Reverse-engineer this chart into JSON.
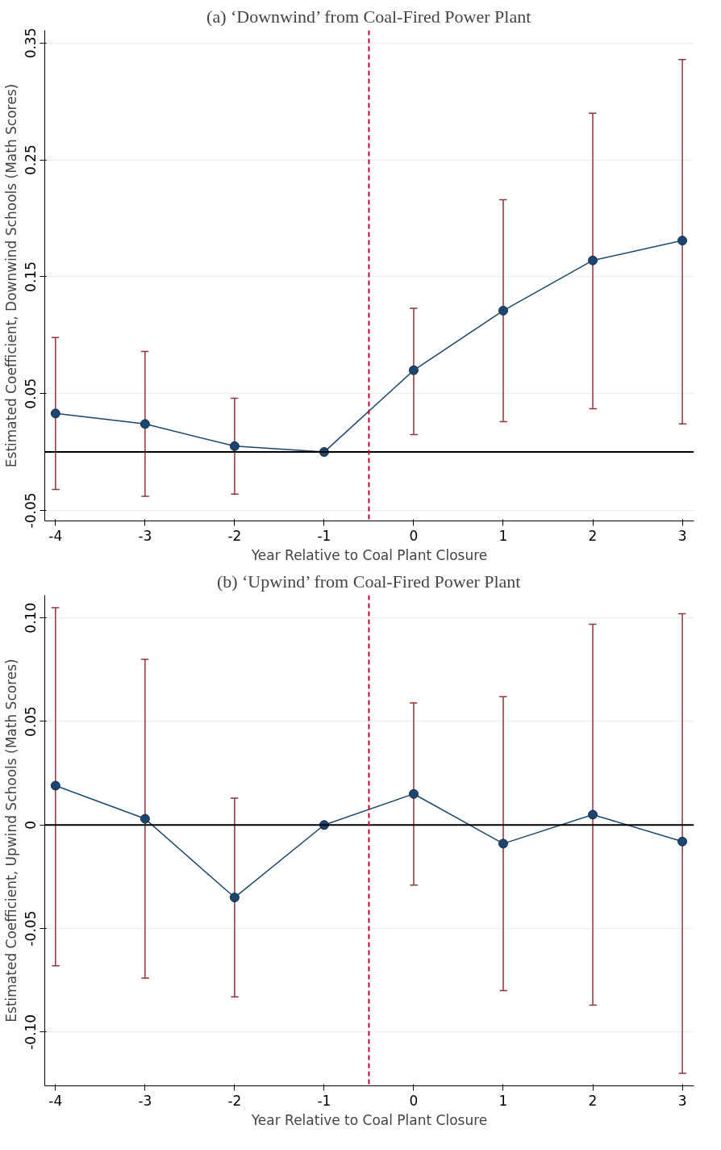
{
  "chart_data": [
    {
      "type": "line",
      "title": "(a) ‘Downwind’ from Coal-Fired Power Plant",
      "xlabel": "Year Relative to Coal Plant Closure",
      "ylabel": "Estimated Coefficient, Downwind Schools (Math Scores)",
      "x": [
        -4,
        -3,
        -2,
        -1,
        0,
        1,
        2,
        3
      ],
      "series": [
        {
          "color": "#1a476f",
          "values": [
            0.033,
            0.024,
            0.005,
            0.0,
            0.07,
            0.121,
            0.164,
            0.181
          ],
          "errors": [
            [
              -0.032,
              0.098
            ],
            [
              -0.038,
              0.086
            ],
            [
              -0.036,
              0.046
            ],
            null,
            [
              0.015,
              0.123
            ],
            [
              0.026,
              0.216
            ],
            [
              0.037,
              0.29
            ],
            [
              0.024,
              0.336
            ]
          ]
        }
      ],
      "xlim": [
        -4.12,
        3.13
      ],
      "xticks": [
        -4,
        -3,
        -2,
        -1,
        0,
        1,
        2,
        3
      ],
      "ylim": [
        -0.059,
        0.361
      ],
      "yticks": [
        -0.05,
        0.05,
        0.15,
        0.25,
        0.35
      ],
      "ref_lines": [
        {
          "axis": "y",
          "value": 0,
          "color": "#000000",
          "line_style": "solid"
        },
        {
          "axis": "x",
          "value": -0.5,
          "color": "#c10534",
          "line_style": "dashed"
        }
      ],
      "grid": "y",
      "marker": "circle",
      "line_style": "solid"
    },
    {
      "type": "line",
      "title": "(b) ‘Upwind’ from Coal-Fired Power Plant",
      "xlabel": "Year Relative to Coal Plant Closure",
      "ylabel": "Estimated Coefficient, Upwind Schools (Math Scores)",
      "x": [
        -4,
        -3,
        -2,
        -1,
        0,
        1,
        2,
        3
      ],
      "series": [
        {
          "color": "#1a476f",
          "values": [
            0.019,
            0.003,
            -0.035,
            0.0,
            0.015,
            -0.009,
            0.005,
            -0.008
          ],
          "errors": [
            [
              -0.068,
              0.105
            ],
            [
              -0.074,
              0.08
            ],
            [
              -0.083,
              0.013
            ],
            null,
            [
              -0.029,
              0.059
            ],
            [
              -0.08,
              0.062
            ],
            [
              -0.087,
              0.097
            ],
            [
              -0.12,
              0.102
            ]
          ]
        }
      ],
      "xlim": [
        -4.12,
        3.13
      ],
      "xticks": [
        -4,
        -3,
        -2,
        -1,
        0,
        1,
        2,
        3
      ],
      "ylim": [
        -0.126,
        0.111
      ],
      "yticks": [
        {
          "value": -0.1,
          "label": "-0.10"
        },
        -0.05,
        0,
        0.05,
        {
          "value": 0.1,
          "label": "0.10"
        }
      ],
      "ref_lines": [
        {
          "axis": "y",
          "value": 0,
          "color": "#000000",
          "line_style": "solid"
        },
        {
          "axis": "x",
          "value": -0.5,
          "color": "#c10534",
          "line_style": "dashed"
        }
      ],
      "grid": "y",
      "marker": "circle",
      "line_style": "solid"
    }
  ]
}
